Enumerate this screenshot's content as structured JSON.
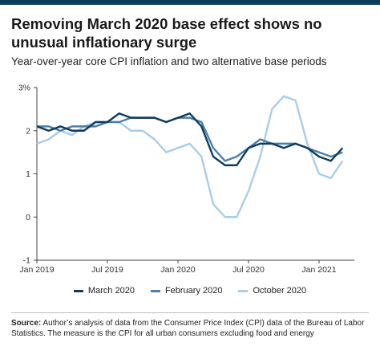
{
  "title": "Removing March 2020 base effect shows no unusual inflationary surge",
  "subtitle": "Year-over-year core CPI inflation and two alternative base periods",
  "source": {
    "label": "Source:",
    "text": "Author’s analysis of data from the Consumer Price Index (CPI) data of the Bureau of Labor Statistics. The measure is the CPI for all urban consumers excluding food and energy"
  },
  "chart_data": {
    "type": "line",
    "title": "Removing March 2020 base effect shows no unusual inflationary surge",
    "subtitle": "Year-over-year core CPI inflation and two alternative base periods",
    "xlabel": "",
    "ylabel": "",
    "ylim": [
      -1,
      3
    ],
    "y_ticks": [
      {
        "value": 3,
        "label": "3%"
      },
      {
        "value": 2,
        "label": "2"
      },
      {
        "value": 1,
        "label": "1"
      },
      {
        "value": 0,
        "label": "0"
      },
      {
        "value": -1,
        "label": "-1"
      }
    ],
    "x_ticks": [
      {
        "index": 0,
        "label": "Jan 2019"
      },
      {
        "index": 6,
        "label": "Jul 2019"
      },
      {
        "index": 12,
        "label": "Jan 2020"
      },
      {
        "index": 18,
        "label": "Jul 2020"
      },
      {
        "index": 24,
        "label": "Jan 2021"
      }
    ],
    "x": [
      "2019-01",
      "2019-02",
      "2019-03",
      "2019-04",
      "2019-05",
      "2019-06",
      "2019-07",
      "2019-08",
      "2019-09",
      "2019-10",
      "2019-11",
      "2019-12",
      "2020-01",
      "2020-02",
      "2020-03",
      "2020-04",
      "2020-05",
      "2020-06",
      "2020-07",
      "2020-08",
      "2020-09",
      "2020-10",
      "2020-11",
      "2020-12",
      "2021-01",
      "2021-02",
      "2021-03",
      "2021-04"
    ],
    "grid": false,
    "legend_position": "bottom",
    "series": [
      {
        "name": "March 2020",
        "color": "#0f3b5e",
        "values": [
          2.1,
          2.0,
          2.1,
          2.0,
          2.0,
          2.2,
          2.2,
          2.4,
          2.3,
          2.3,
          2.3,
          2.2,
          2.3,
          2.4,
          2.1,
          1.4,
          1.2,
          1.2,
          1.6,
          1.7,
          1.7,
          1.6,
          1.7,
          1.6,
          1.4,
          1.3,
          1.6,
          null
        ]
      },
      {
        "name": "February 2020",
        "color": "#4a7fa8",
        "values": [
          2.1,
          2.1,
          2.0,
          2.1,
          2.1,
          2.1,
          2.2,
          2.2,
          2.3,
          2.3,
          2.3,
          2.2,
          2.3,
          2.3,
          2.2,
          1.6,
          1.3,
          1.4,
          1.6,
          1.8,
          1.7,
          1.7,
          1.7,
          1.6,
          1.5,
          1.4,
          1.5,
          null
        ]
      },
      {
        "name": "October 2020",
        "color": "#a8cde8",
        "values": [
          1.7,
          1.8,
          2.0,
          1.9,
          2.1,
          2.2,
          2.2,
          2.2,
          2.0,
          2.0,
          1.8,
          1.5,
          1.6,
          1.7,
          1.4,
          0.3,
          0.0,
          0.0,
          0.6,
          1.4,
          2.5,
          2.8,
          2.7,
          1.7,
          1.0,
          0.9,
          1.3,
          null
        ]
      }
    ]
  }
}
